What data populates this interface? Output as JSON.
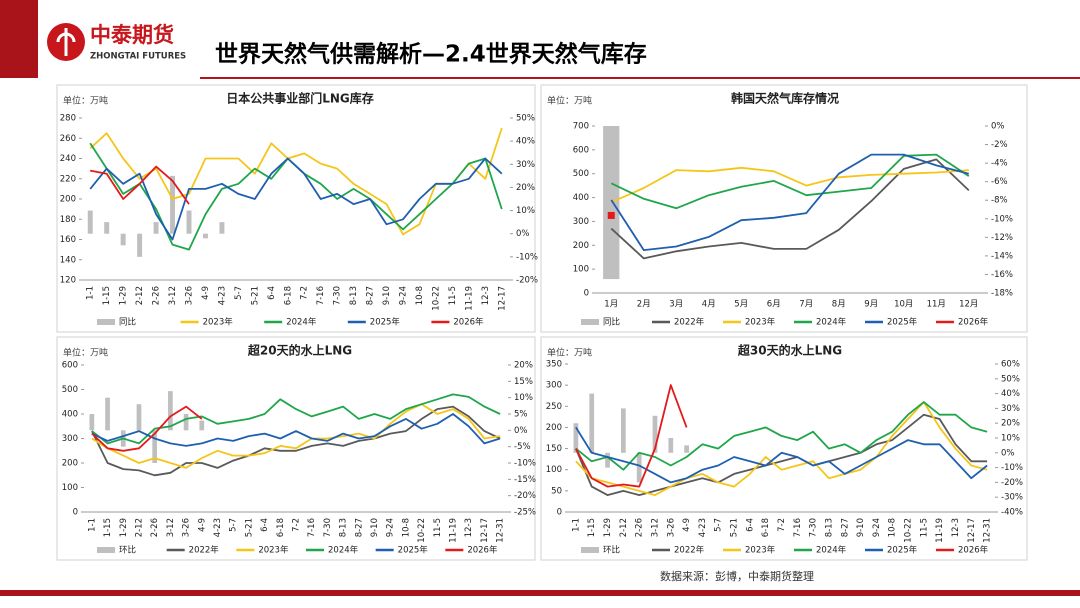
{
  "header": {
    "logo_cn": "中泰期货",
    "logo_en": "ZHONGTAI FUTURES",
    "title": "世界天然气供需解析—2.4世界天然气库存"
  },
  "footer": {
    "source": "数据来源：彭博，中泰期货整理"
  },
  "chart_data": [
    {
      "type": "line",
      "title": "日本公共事业部门LNG库存",
      "unit": "单位：万吨",
      "categories": [
        "1-1",
        "1-15",
        "1-29",
        "2-12",
        "2-26",
        "3-12",
        "3-26",
        "4-9",
        "4-23",
        "5-7",
        "5-21",
        "6-4",
        "6-18",
        "7-2",
        "7-16",
        "7-30",
        "8-13",
        "8-27",
        "9-10",
        "9-24",
        "10-8",
        "10-22",
        "11-5",
        "11-19",
        "12-3",
        "12-17"
      ],
      "ylim": [
        120,
        280
      ],
      "yticks": [
        120,
        140,
        160,
        180,
        200,
        220,
        240,
        260,
        280
      ],
      "y2lim": [
        -20,
        50
      ],
      "y2ticks": [
        {
          "value": -20,
          "label": "-20%"
        },
        {
          "value": -10,
          "label": "-10%"
        },
        {
          "value": 0,
          "label": "0%"
        },
        {
          "value": 10,
          "label": "10%"
        },
        {
          "value": 20,
          "label": "20%"
        },
        {
          "value": 30,
          "label": "30%"
        },
        {
          "value": 40,
          "label": "40%"
        },
        {
          "value": 50,
          "label": "50%"
        }
      ],
      "series": [
        {
          "name": "同比",
          "kind": "bar",
          "axis": "y2",
          "color": "#bfbfbf",
          "values": [
            10,
            5,
            -5,
            -10,
            5,
            25,
            10,
            -2,
            5,
            null,
            null,
            null,
            null,
            null,
            null,
            null,
            null,
            null,
            null,
            null,
            null,
            null,
            null,
            null,
            null,
            null
          ]
        },
        {
          "name": "2023年",
          "color": "#f5c518",
          "values": [
            250,
            265,
            240,
            220,
            230,
            200,
            205,
            240,
            240,
            240,
            225,
            255,
            240,
            245,
            235,
            230,
            215,
            205,
            195,
            165,
            175,
            215,
            215,
            235,
            220,
            270
          ]
        },
        {
          "name": "2024年",
          "color": "#1fa64a",
          "values": [
            255,
            230,
            205,
            215,
            190,
            155,
            150,
            185,
            210,
            215,
            230,
            220,
            240,
            225,
            215,
            200,
            210,
            200,
            185,
            170,
            185,
            200,
            215,
            235,
            240,
            190
          ]
        },
        {
          "name": "2025年",
          "color": "#1f5fb0",
          "values": [
            210,
            230,
            215,
            225,
            185,
            160,
            210,
            210,
            215,
            205,
            200,
            225,
            240,
            225,
            200,
            205,
            195,
            200,
            175,
            180,
            200,
            215,
            215,
            220,
            240,
            225
          ]
        },
        {
          "name": "2026年",
          "color": "#e31a1c",
          "values": [
            228,
            225,
            200,
            215,
            232,
            218,
            195,
            null,
            null,
            null,
            null,
            null,
            null,
            null,
            null,
            null,
            null,
            null,
            null,
            null,
            null,
            null,
            null,
            null,
            null,
            null
          ]
        }
      ]
    },
    {
      "type": "line",
      "title": "韩国天然气库存情况",
      "unit": "单位：万吨",
      "categories": [
        "1月",
        "2月",
        "3月",
        "4月",
        "5月",
        "6月",
        "7月",
        "8月",
        "9月",
        "10月",
        "11月",
        "12月"
      ],
      "ylim": [
        0,
        700
      ],
      "yticks": [
        0,
        100,
        200,
        300,
        400,
        500,
        600,
        700
      ],
      "y2lim": [
        -18,
        0
      ],
      "y2ticks": [
        {
          "value": 0,
          "label": "0%"
        },
        {
          "value": -2,
          "label": "-2%"
        },
        {
          "value": -4,
          "label": "-4%"
        },
        {
          "value": -6,
          "label": "-6%"
        },
        {
          "value": -8,
          "label": "-8%"
        },
        {
          "value": -10,
          "label": "-10%"
        },
        {
          "value": -12,
          "label": "-12%"
        },
        {
          "value": -14,
          "label": "-14%"
        },
        {
          "value": -16,
          "label": "-16%"
        },
        {
          "value": -18,
          "label": "-18%"
        }
      ],
      "series": [
        {
          "name": "同比",
          "kind": "bar",
          "axis": "y2",
          "color": "#bfbfbf",
          "values": [
            -16.5,
            null,
            null,
            null,
            null,
            null,
            null,
            null,
            null,
            null,
            null,
            null
          ]
        },
        {
          "name": "2022年",
          "color": "#595959",
          "values": [
            270,
            145,
            175,
            195,
            210,
            185,
            185,
            265,
            385,
            520,
            560,
            430
          ]
        },
        {
          "name": "2023年",
          "color": "#f5c518",
          "values": [
            380,
            440,
            515,
            510,
            525,
            510,
            450,
            485,
            495,
            500,
            505,
            515
          ]
        },
        {
          "name": "2024年",
          "color": "#1fa64a",
          "values": [
            460,
            395,
            355,
            410,
            445,
            470,
            410,
            425,
            440,
            575,
            580,
            490
          ]
        },
        {
          "name": "2025年",
          "color": "#1f5fb0",
          "values": [
            390,
            180,
            195,
            235,
            305,
            315,
            335,
            500,
            580,
            580,
            535,
            500
          ]
        },
        {
          "name": "2026年",
          "color": "#e31a1c",
          "values": [
            325,
            null,
            null,
            null,
            null,
            null,
            null,
            null,
            null,
            null,
            null,
            null
          ]
        }
      ]
    },
    {
      "type": "line",
      "title": "超20天的水上LNG",
      "unit": "单位：万吨",
      "categories": [
        "1-1",
        "1-15",
        "1-29",
        "2-12",
        "2-26",
        "3-12",
        "3-26",
        "4-9",
        "4-23",
        "5-7",
        "5-21",
        "6-4",
        "6-18",
        "7-2",
        "7-16",
        "7-30",
        "8-13",
        "8-27",
        "9-10",
        "9-24",
        "10-8",
        "10-22",
        "11-5",
        "11-19",
        "12-3",
        "12-17",
        "12-31"
      ],
      "ylim": [
        0,
        600
      ],
      "yticks": [
        0,
        100,
        200,
        300,
        400,
        500,
        600
      ],
      "y2lim": [
        -25,
        20
      ],
      "y2ticks": [
        {
          "value": -25,
          "label": "-25%"
        },
        {
          "value": -20,
          "label": "-20%"
        },
        {
          "value": -15,
          "label": "-15%"
        },
        {
          "value": -10,
          "label": "-10%"
        },
        {
          "value": -5,
          "label": "-5%"
        },
        {
          "value": 0,
          "label": "0%"
        },
        {
          "value": 5,
          "label": "5%"
        },
        {
          "value": 10,
          "label": "10%"
        },
        {
          "value": 15,
          "label": "15%"
        },
        {
          "value": 20,
          "label": "20%"
        }
      ],
      "series": [
        {
          "name": "环比",
          "kind": "bar",
          "axis": "y2",
          "color": "#bfbfbf",
          "values": [
            5,
            10,
            -5,
            8,
            -10,
            12,
            5,
            3,
            null,
            null,
            null,
            null,
            null,
            null,
            null,
            null,
            null,
            null,
            null,
            null,
            null,
            null,
            null,
            null,
            null,
            null,
            null
          ]
        },
        {
          "name": "2022年",
          "color": "#595959",
          "values": [
            330,
            200,
            175,
            170,
            150,
            160,
            200,
            200,
            180,
            210,
            230,
            260,
            250,
            250,
            270,
            280,
            270,
            290,
            300,
            320,
            330,
            380,
            420,
            430,
            390,
            330,
            300
          ]
        },
        {
          "name": "2023年",
          "color": "#f5c518",
          "values": [
            300,
            260,
            230,
            200,
            220,
            200,
            180,
            220,
            250,
            230,
            230,
            240,
            270,
            260,
            300,
            300,
            310,
            320,
            300,
            360,
            410,
            440,
            400,
            420,
            380,
            300,
            310
          ]
        },
        {
          "name": "2024年",
          "color": "#1fa64a",
          "values": [
            330,
            280,
            300,
            280,
            340,
            350,
            380,
            390,
            360,
            370,
            380,
            400,
            460,
            420,
            390,
            410,
            430,
            380,
            400,
            380,
            420,
            440,
            460,
            480,
            470,
            430,
            400
          ]
        },
        {
          "name": "2025年",
          "color": "#1f5fb0",
          "values": [
            320,
            290,
            310,
            330,
            300,
            280,
            270,
            280,
            300,
            290,
            310,
            320,
            300,
            330,
            300,
            290,
            320,
            300,
            310,
            350,
            380,
            340,
            360,
            400,
            350,
            280,
            300
          ]
        },
        {
          "name": "2026年",
          "color": "#e31a1c",
          "values": [
            320,
            260,
            250,
            260,
            320,
            390,
            430,
            380,
            null,
            null,
            null,
            null,
            null,
            null,
            null,
            null,
            null,
            null,
            null,
            null,
            null,
            null,
            null,
            null,
            null,
            null,
            null
          ]
        }
      ]
    },
    {
      "type": "line",
      "title": "超30天的水上LNG",
      "unit": "单位：万吨",
      "categories": [
        "1-1",
        "1-15",
        "1-29",
        "2-12",
        "2-26",
        "3-12",
        "3-26",
        "4-9",
        "4-23",
        "5-7",
        "5-21",
        "6-4",
        "6-18",
        "7-2",
        "7-16",
        "7-30",
        "8-13",
        "8-27",
        "9-10",
        "9-24",
        "10-8",
        "10-22",
        "11-5",
        "11-19",
        "12-3",
        "12-17",
        "12-31"
      ],
      "ylim": [
        0,
        350
      ],
      "yticks": [
        0,
        50,
        100,
        150,
        200,
        250,
        300,
        350
      ],
      "y2lim": [
        -40,
        60
      ],
      "y2ticks": [
        {
          "value": -40,
          "label": "-40%"
        },
        {
          "value": -30,
          "label": "-30%"
        },
        {
          "value": -20,
          "label": "-20%"
        },
        {
          "value": -10,
          "label": "-10%"
        },
        {
          "value": 0,
          "label": "0%"
        },
        {
          "value": 10,
          "label": "10%"
        },
        {
          "value": 20,
          "label": "20%"
        },
        {
          "value": 30,
          "label": "30%"
        },
        {
          "value": 40,
          "label": "40%"
        },
        {
          "value": 50,
          "label": "50%"
        },
        {
          "value": 60,
          "label": "60%"
        }
      ],
      "series": [
        {
          "name": "环比",
          "kind": "bar",
          "axis": "y2",
          "color": "#bfbfbf",
          "values": [
            20,
            40,
            -10,
            30,
            -20,
            25,
            10,
            5,
            null,
            null,
            null,
            null,
            null,
            null,
            null,
            null,
            null,
            null,
            null,
            null,
            null,
            null,
            null,
            null,
            null,
            null,
            null
          ]
        },
        {
          "name": "2022年",
          "color": "#595959",
          "values": [
            150,
            60,
            40,
            50,
            40,
            50,
            60,
            70,
            80,
            70,
            90,
            100,
            110,
            120,
            130,
            110,
            120,
            130,
            140,
            160,
            170,
            200,
            230,
            220,
            160,
            120,
            120
          ]
        },
        {
          "name": "2023年",
          "color": "#f5c518",
          "values": [
            120,
            80,
            70,
            60,
            50,
            40,
            60,
            80,
            90,
            70,
            60,
            90,
            130,
            100,
            110,
            120,
            80,
            90,
            100,
            130,
            180,
            220,
            260,
            200,
            150,
            110,
            100
          ]
        },
        {
          "name": "2024年",
          "color": "#1fa64a",
          "values": [
            150,
            120,
            130,
            100,
            140,
            130,
            110,
            130,
            160,
            150,
            180,
            190,
            200,
            180,
            170,
            190,
            150,
            160,
            140,
            170,
            190,
            230,
            260,
            230,
            230,
            200,
            190
          ]
        },
        {
          "name": "2025年",
          "color": "#1f5fb0",
          "values": [
            200,
            140,
            130,
            120,
            110,
            90,
            70,
            80,
            100,
            110,
            130,
            120,
            110,
            140,
            130,
            110,
            120,
            90,
            110,
            130,
            150,
            170,
            160,
            160,
            120,
            80,
            110
          ]
        },
        {
          "name": "2026年",
          "color": "#e31a1c",
          "values": [
            150,
            80,
            60,
            65,
            60,
            150,
            300,
            200,
            null,
            null,
            null,
            null,
            null,
            null,
            null,
            null,
            null,
            null,
            null,
            null,
            null,
            null,
            null,
            null,
            null,
            null,
            null
          ]
        }
      ]
    }
  ]
}
